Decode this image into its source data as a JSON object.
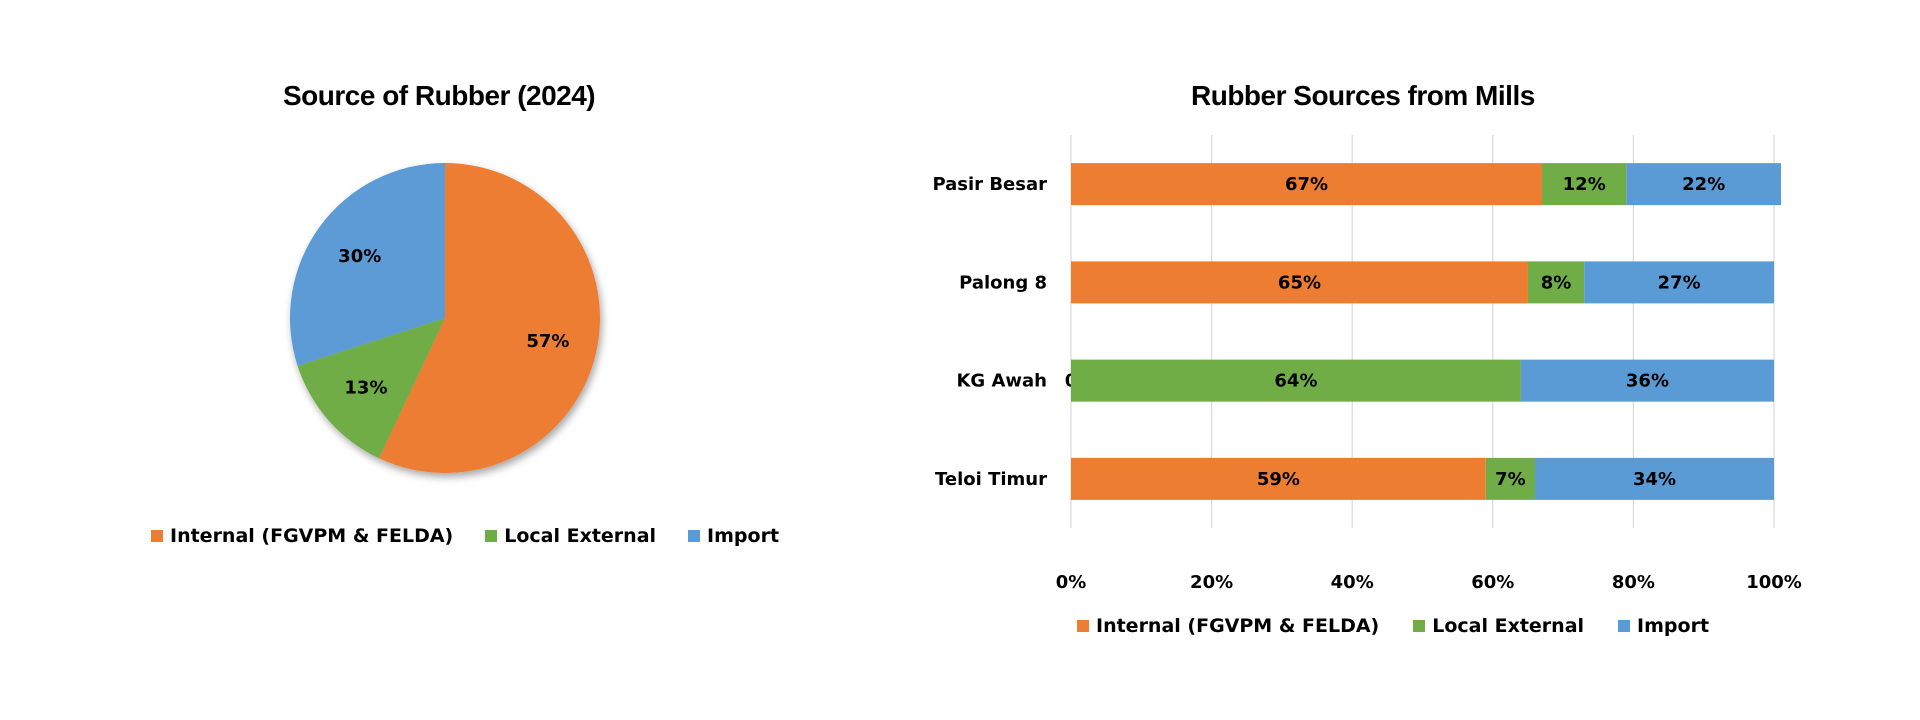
{
  "colors": {
    "internal": "#ED7D31",
    "local_external": "#70AD47",
    "import": "#5B9BD5"
  },
  "chart_data": [
    {
      "type": "pie",
      "title": "Source of Rubber (2024)",
      "slices": [
        {
          "label": "Internal (FGVPM & FELDA)",
          "value": 57,
          "text": "57%",
          "color_key": "internal"
        },
        {
          "label": "Local External",
          "value": 13,
          "text": "13%",
          "color_key": "local_external"
        },
        {
          "label": "Import",
          "value": 30,
          "text": "30%",
          "color_key": "import"
        }
      ],
      "legend": [
        "Internal (FGVPM & FELDA)",
        "Local External",
        "Import"
      ],
      "legend_position": "bottom"
    },
    {
      "type": "bar",
      "orientation": "horizontal",
      "stacked": "percent",
      "title": "Rubber Sources from Mills",
      "categories": [
        "Pasir Besar",
        "Palong 8",
        "KG Awah",
        "Teloi Timur"
      ],
      "series": [
        {
          "name": "Internal (FGVPM & FELDA)",
          "color_key": "internal",
          "values": [
            67,
            65,
            0,
            59
          ],
          "labels": [
            "67%",
            "65%",
            "0",
            "59%"
          ]
        },
        {
          "name": "Local External",
          "color_key": "local_external",
          "values": [
            12,
            8,
            64,
            7
          ],
          "labels": [
            "12%",
            "8%",
            "64%",
            "7%"
          ]
        },
        {
          "name": "Import",
          "color_key": "import",
          "values": [
            22,
            27,
            36,
            34
          ],
          "labels": [
            "22%",
            "27%",
            "36%",
            "34%"
          ]
        }
      ],
      "x_ticks": [
        "0%",
        "20%",
        "40%",
        "60%",
        "80%",
        "100%"
      ],
      "xlim": [
        0,
        100
      ],
      "grid": true,
      "legend": [
        "Internal (FGVPM & FELDA)",
        "Local External",
        "Import"
      ],
      "legend_position": "bottom"
    }
  ]
}
